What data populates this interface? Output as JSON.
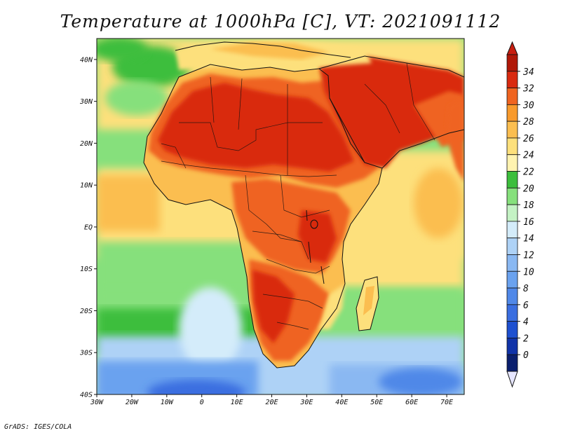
{
  "title": "Temperature at 1000hPa [C], VT: 2021091112",
  "footer": "GrADS: IGES/COLA",
  "chart_data": {
    "type": "heatmap",
    "variable": "Temperature at 1000hPa",
    "units": "C",
    "valid_time": "2021091112",
    "lon_range": [
      -30,
      75
    ],
    "lat_range": [
      -40,
      45
    ],
    "x_ticks": [
      "30W",
      "20W",
      "10W",
      "0",
      "10E",
      "20E",
      "30E",
      "40E",
      "50E",
      "60E",
      "70E"
    ],
    "y_ticks": [
      "40N",
      "30N",
      "20N",
      "10N",
      "EQ",
      "10S",
      "20S",
      "30S",
      "40S"
    ],
    "colorbar": {
      "levels": [
        0,
        2,
        4,
        6,
        8,
        10,
        12,
        14,
        16,
        18,
        20,
        22,
        24,
        26,
        28,
        30,
        32,
        34
      ],
      "labels": [
        "0",
        "2",
        "4",
        "6",
        "8",
        "10",
        "12",
        "14",
        "16",
        "18",
        "20",
        "22",
        "24",
        "26",
        "28",
        "30",
        "32",
        "34"
      ],
      "colors": [
        "#0a1f6e",
        "#1033a8",
        "#1e50d0",
        "#3a6ee0",
        "#5088e8",
        "#6aa2ef",
        "#8ab8f2",
        "#aed2f6",
        "#d4ecfa",
        "#c4f2c4",
        "#86e07c",
        "#3cbe3c",
        "#fff3b0",
        "#fde07c",
        "#fbbe50",
        "#f89a2c",
        "#ef6420",
        "#d92a10",
        "#b01808"
      ],
      "under_color": "#e6e6ff",
      "over_color": "#c81e10"
    }
  }
}
